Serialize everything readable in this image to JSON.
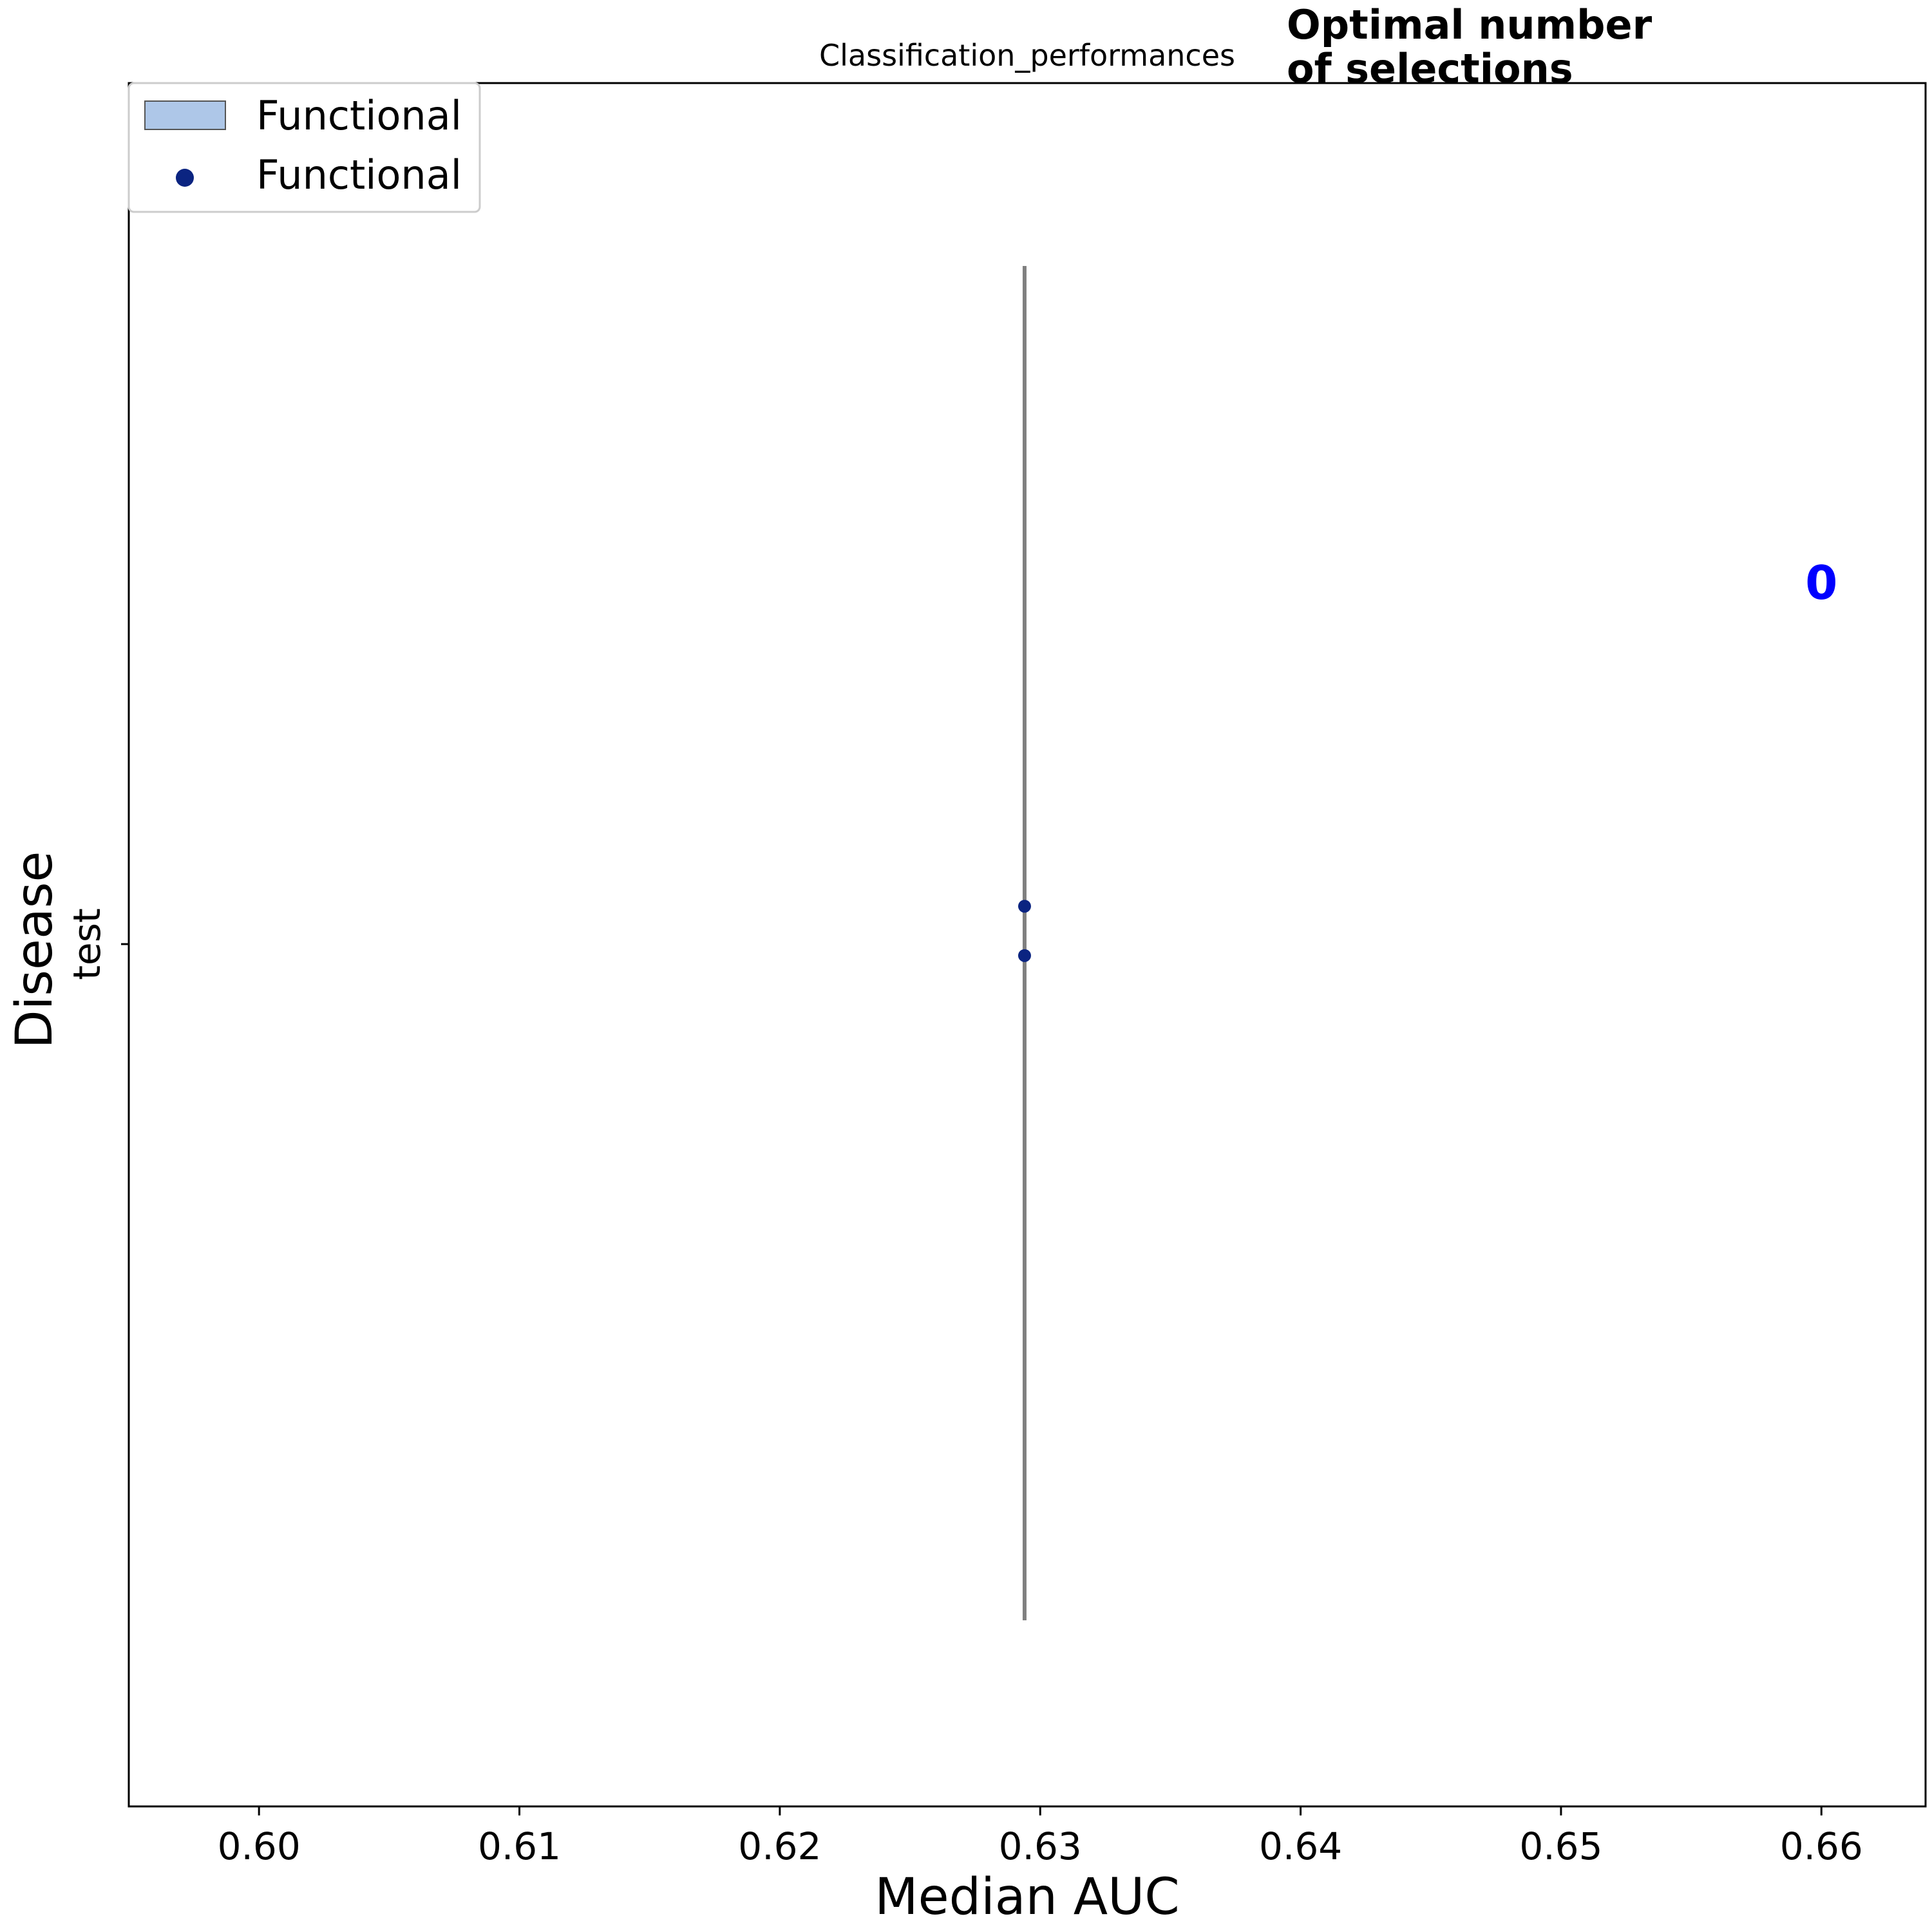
{
  "chart_data": {
    "type": "scatter",
    "title": "Classification_performances",
    "side_title": "Optimal number\nof selections",
    "xlabel": "Median AUC",
    "ylabel": "Disease",
    "category_label": "test",
    "xlim": [
      0.595,
      0.664
    ],
    "x_ticks": [
      "0.60",
      "0.61",
      "0.62",
      "0.63",
      "0.64",
      "0.65",
      "0.66"
    ],
    "x_tick_values": [
      0.6,
      0.61,
      0.62,
      0.63,
      0.64,
      0.65,
      0.66
    ],
    "vertical_line": {
      "x": 0.6294,
      "color": "#808080"
    },
    "points": [
      {
        "series": "Functional",
        "x": 0.6294,
        "y_offset": 0.056
      },
      {
        "series": "Functional",
        "x": 0.6294,
        "y_offset": -0.017
      }
    ],
    "legend": {
      "position": "top-left",
      "entries": [
        {
          "label": "Functional",
          "kind": "patch",
          "color": "#aec7e8",
          "edge": "#555555"
        },
        {
          "label": "Functional",
          "kind": "marker",
          "color": "#0b2481"
        }
      ]
    },
    "annotation": {
      "text": "0",
      "x": 0.66,
      "color": "#0000ff"
    },
    "grid": false
  }
}
